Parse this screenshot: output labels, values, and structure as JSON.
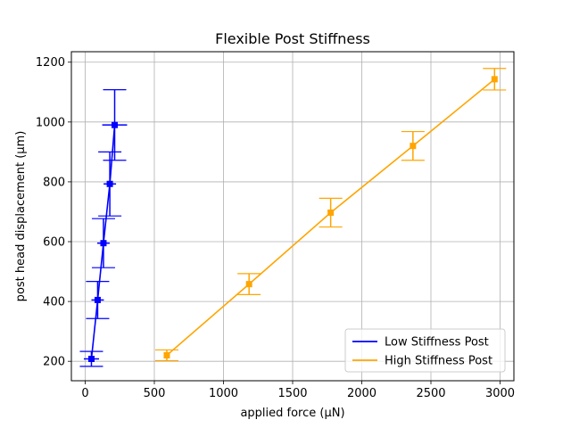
{
  "chart_data": {
    "type": "line",
    "title": "Flexible Post Stiffness",
    "xlabel": "applied force (µN)",
    "ylabel": "post head displacement (µm)",
    "xlim": [
      -100,
      3100
    ],
    "ylim": [
      135,
      1235
    ],
    "xticks": [
      0,
      500,
      1000,
      1500,
      2000,
      2500,
      3000
    ],
    "yticks": [
      200,
      400,
      600,
      800,
      1000,
      1200
    ],
    "grid": true,
    "legend_position": "lower-right",
    "series": [
      {
        "name": "Low Stiffness Post",
        "color": "#0000ff",
        "x": [
          45,
          90,
          132,
          178,
          213
        ],
        "y": [
          208,
          405,
          595,
          793,
          990
        ],
        "xerr": [
          55,
          45,
          45,
          45,
          90
        ],
        "yerr": [
          25,
          62,
          82,
          107,
          118
        ]
      },
      {
        "name": "High Stiffness Post",
        "color": "#ffa500",
        "x": [
          590,
          1185,
          1775,
          2370,
          2960
        ],
        "y": [
          220,
          458,
          697,
          920,
          1143
        ],
        "xerr": [
          0,
          0,
          0,
          0,
          0
        ],
        "yerr": [
          18,
          35,
          48,
          48,
          36
        ]
      }
    ]
  }
}
